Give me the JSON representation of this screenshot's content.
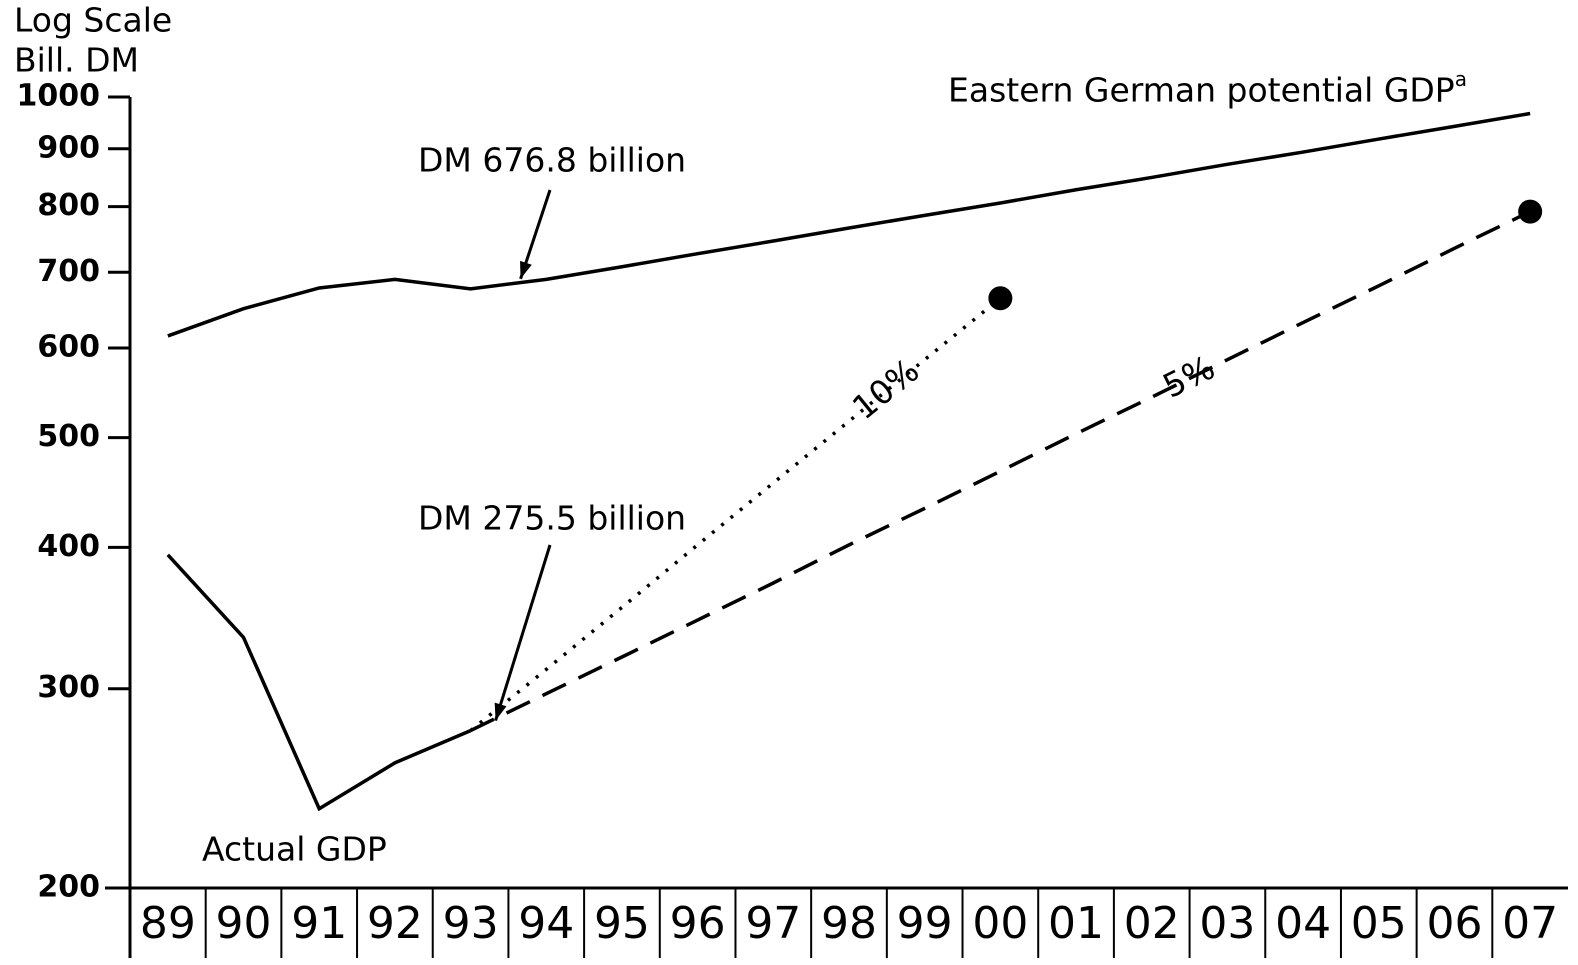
{
  "chart_data": {
    "type": "line",
    "y_label_lines": [
      "Log Scale",
      "Bill. DM"
    ],
    "log_scale": true,
    "ylim": [
      200,
      1000
    ],
    "yticks": [
      200,
      300,
      400,
      500,
      600,
      700,
      800,
      900,
      1000
    ],
    "categories": [
      "89",
      "90",
      "91",
      "92",
      "93",
      "94",
      "95",
      "96",
      "97",
      "98",
      "99",
      "00",
      "01",
      "02",
      "03",
      "04",
      "05",
      "06",
      "07"
    ],
    "series": [
      {
        "name": "Eastern German potential GDP",
        "footnote": "a",
        "color": "#000000",
        "style": "solid",
        "values": [
          615,
          650,
          678,
          690,
          676.8,
          690,
          708,
          727,
          746,
          766,
          786,
          806,
          828,
          849,
          872,
          894,
          918,
          942,
          967
        ],
        "value_labels": [
          null,
          null,
          null,
          null,
          "DM 676.8 billion",
          null,
          null,
          null,
          null,
          null,
          null,
          null,
          null,
          null,
          null,
          null,
          null,
          null,
          null
        ]
      },
      {
        "name": "Actual GDP",
        "color": "#000000",
        "style": "solid",
        "values": [
          394,
          333,
          235,
          258,
          275.5,
          null,
          null,
          null,
          null,
          null,
          null,
          null,
          null,
          null,
          null,
          null,
          null,
          null,
          null
        ],
        "value_labels": [
          null,
          null,
          null,
          null,
          "DM 275.5 billion",
          null,
          null,
          null,
          null,
          null,
          null,
          null,
          null,
          null,
          null,
          null,
          null,
          null,
          null
        ]
      },
      {
        "name": "10%",
        "color": "#000000",
        "style": "dotted",
        "end_marker": true,
        "values": [
          null,
          null,
          null,
          null,
          275.5,
          312,
          354,
          402,
          456,
          517,
          586,
          664,
          null,
          null,
          null,
          null,
          null,
          null,
          null
        ]
      },
      {
        "name": "5%",
        "color": "#000000",
        "style": "dashed",
        "end_marker": true,
        "values": [
          null,
          null,
          null,
          null,
          275.5,
          297,
          320,
          345,
          372,
          402,
          433,
          467,
          504,
          543,
          586,
          632,
          681,
          735,
          792
        ]
      }
    ]
  }
}
